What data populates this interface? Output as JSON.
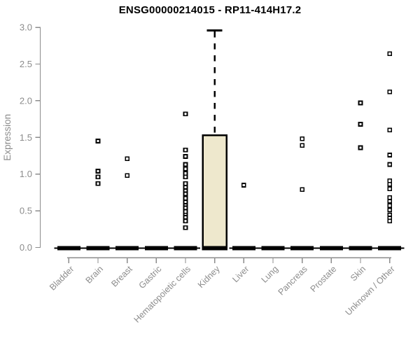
{
  "chart_data": {
    "type": "box",
    "title": "ENSG00000214015 - RP11-414H17.2",
    "xlabel": "",
    "ylabel": "Expression",
    "ylim": [
      0.0,
      3.0
    ],
    "yticks": [
      0.0,
      0.5,
      1.0,
      1.5,
      2.0,
      2.5,
      3.0
    ],
    "grid": false,
    "legend": null,
    "colors": {
      "background": "#FFFFFF",
      "axis": "#8C8C8C",
      "title": "#000000",
      "box_fill": "#EEE8CD",
      "box_stroke": "#000000",
      "point_fill": "#FFFFFF",
      "point_stroke": "#000000"
    },
    "categories": [
      "Bladder",
      "Brain",
      "Breast",
      "Gastric",
      "Hematopoietic cells",
      "Kidney",
      "Liver",
      "Lung",
      "Pancreas",
      "Prostate",
      "Skin",
      "Unknown / Other"
    ],
    "series": [
      {
        "category": "Bladder",
        "q1": 0,
        "median": 0,
        "q3": 0,
        "whisker_low": 0,
        "whisker_high": 0,
        "outliers": []
      },
      {
        "category": "Brain",
        "q1": 0,
        "median": 0,
        "q3": 0,
        "whisker_low": 0,
        "whisker_high": 0,
        "outliers": [
          1.45,
          1.04,
          0.96,
          0.87
        ]
      },
      {
        "category": "Breast",
        "q1": 0,
        "median": 0,
        "q3": 0,
        "whisker_low": 0,
        "whisker_high": 0,
        "outliers": [
          1.21,
          0.98
        ]
      },
      {
        "category": "Gastric",
        "q1": 0,
        "median": 0,
        "q3": 0,
        "whisker_low": 0,
        "whisker_high": 0,
        "outliers": []
      },
      {
        "category": "Hematopoietic cells",
        "q1": 0,
        "median": 0,
        "q3": 0,
        "whisker_low": 0,
        "whisker_high": 0,
        "outliers": [
          1.82,
          1.33,
          1.24,
          1.13,
          1.07,
          1.01,
          0.96,
          0.87,
          0.82,
          0.77,
          0.73,
          0.67,
          0.62,
          0.57,
          0.54,
          0.49,
          0.44,
          0.41,
          0.36,
          0.27
        ]
      },
      {
        "category": "Kidney",
        "q1": 0,
        "median": 0,
        "q3": 1.53,
        "whisker_low": 0,
        "whisker_high": 2.96,
        "outliers": []
      },
      {
        "category": "Liver",
        "q1": 0,
        "median": 0,
        "q3": 0,
        "whisker_low": 0,
        "whisker_high": 0,
        "outliers": [
          0.85
        ]
      },
      {
        "category": "Lung",
        "q1": 0,
        "median": 0,
        "q3": 0,
        "whisker_low": 0,
        "whisker_high": 0,
        "outliers": []
      },
      {
        "category": "Pancreas",
        "q1": 0,
        "median": 0,
        "q3": 0,
        "whisker_low": 0,
        "whisker_high": 0,
        "outliers": [
          1.48,
          1.39,
          0.79
        ]
      },
      {
        "category": "Prostate",
        "q1": 0,
        "median": 0,
        "q3": 0,
        "whisker_low": 0,
        "whisker_high": 0,
        "outliers": []
      },
      {
        "category": "Skin",
        "q1": 0,
        "median": 0,
        "q3": 0,
        "whisker_low": 0,
        "whisker_high": 0,
        "outliers": [
          1.97,
          1.68,
          1.36
        ]
      },
      {
        "category": "Unknown / Other",
        "q1": 0,
        "median": 0,
        "q3": 0,
        "whisker_low": 0,
        "whisker_high": 0,
        "outliers": [
          2.64,
          2.12,
          1.6,
          1.26,
          1.13,
          0.91,
          0.86,
          0.8,
          0.68,
          0.63,
          0.57,
          0.51,
          0.44,
          0.4,
          0.36
        ]
      }
    ]
  }
}
